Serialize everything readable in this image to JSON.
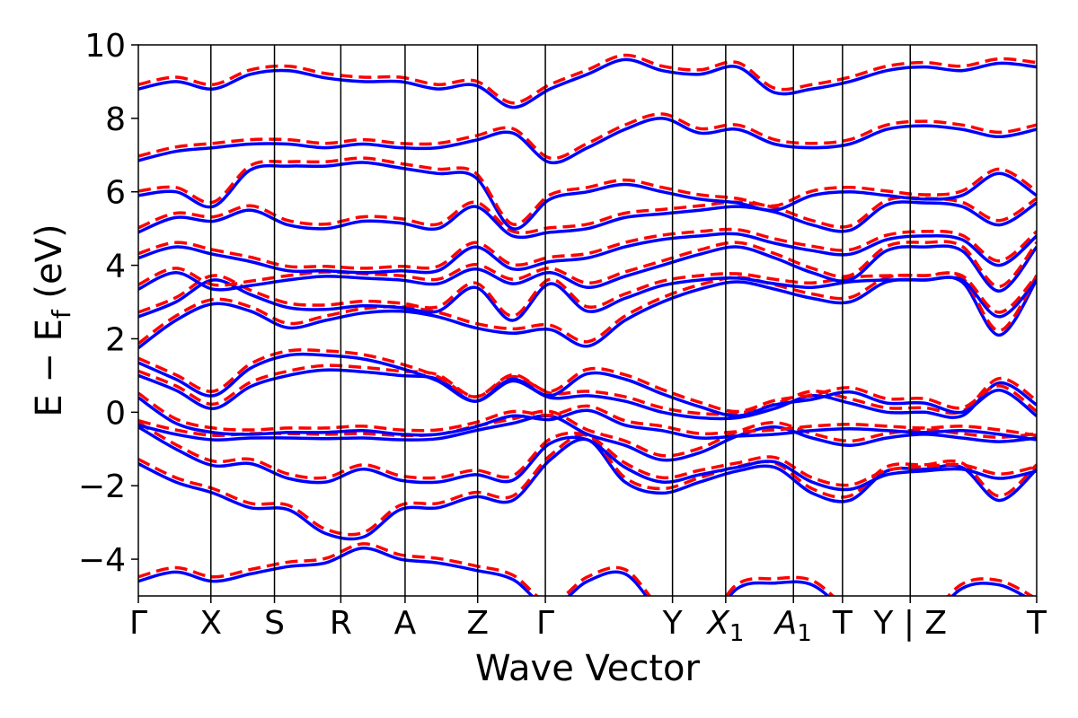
{
  "chart_data": {
    "type": "line",
    "xlabel": "Wave Vector",
    "ylabel_main": "E − E",
    "ylabel_sub": "f",
    "ylabel_unit": " (eV)",
    "ylim": [
      -5,
      10
    ],
    "xlim": [
      0,
      13.0
    ],
    "yticks": [
      -4,
      -2,
      0,
      2,
      4,
      6,
      8,
      10
    ],
    "ytick_labels": [
      "−4",
      "−2",
      "0",
      "2",
      "4",
      "6",
      "8",
      "10"
    ],
    "kpoint_positions": [
      0,
      1.05,
      1.97,
      2.93,
      3.86,
      4.91,
      5.89,
      7.73,
      8.5,
      9.48,
      10.19,
      11.17,
      13.0
    ],
    "kpoint_labels": [
      "Γ",
      "X",
      "S",
      "R",
      "A",
      "Z",
      "Γ",
      "Y",
      "X1",
      "A1",
      "T",
      "Y | Z",
      "T"
    ],
    "grid": false,
    "line_colors": {
      "solid": "#0000ff",
      "dashed": "#ff0000"
    },
    "series_styles": [
      "solid",
      "dashed"
    ],
    "bands": [
      [
        -4.6,
        -4.35,
        -4.6,
        -4.4,
        -4.2,
        -4.1,
        -3.7,
        -4.0,
        -4.1,
        -4.3,
        -4.55,
        -5.3,
        -4.6,
        -4.4,
        -5.5,
        -6.0,
        -4.8,
        -4.65,
        -4.7,
        -5.5,
        -6.0,
        -5.8,
        -4.8,
        -4.7,
        -5.2
      ],
      [
        -1.4,
        -1.9,
        -2.2,
        -2.6,
        -2.65,
        -3.3,
        -3.4,
        -2.65,
        -2.6,
        -2.3,
        -2.4,
        -1.3,
        -0.75,
        -1.9,
        -2.2,
        -1.9,
        -1.6,
        -1.5,
        -2.2,
        -2.4,
        -1.6,
        -1.55,
        -1.5,
        -2.4,
        -1.55
      ],
      [
        -0.4,
        -1.0,
        -1.45,
        -1.4,
        -1.8,
        -1.9,
        -1.55,
        -1.85,
        -1.9,
        -1.7,
        -1.85,
        -0.85,
        -0.75,
        -1.5,
        -1.9,
        -1.7,
        -1.5,
        -1.35,
        -1.9,
        -2.1,
        -1.7,
        -1.6,
        -1.55,
        -1.8,
        -1.6
      ],
      [
        -0.35,
        -0.6,
        -0.75,
        -0.7,
        -0.7,
        -0.72,
        -0.7,
        -0.75,
        -0.72,
        -0.5,
        -0.3,
        -0.1,
        -0.6,
        -0.9,
        -1.3,
        -1.1,
        -0.65,
        -0.4,
        -0.7,
        -0.9,
        -0.7,
        -0.6,
        -0.7,
        -0.8,
        -0.7
      ],
      [
        0.4,
        -0.3,
        -0.55,
        -0.6,
        -0.55,
        -0.55,
        -0.5,
        -0.6,
        -0.6,
        -0.4,
        -0.1,
        -0.2,
        0.05,
        -0.35,
        -0.5,
        -0.7,
        -0.65,
        -0.6,
        -0.5,
        -0.45,
        -0.5,
        -0.55,
        -0.5,
        -0.6,
        -0.75
      ],
      [
        1.0,
        0.6,
        0.1,
        0.7,
        1.0,
        1.15,
        1.1,
        1.0,
        0.9,
        0.3,
        0.85,
        0.4,
        0.45,
        0.3,
        0.0,
        -0.15,
        -0.15,
        0.1,
        0.45,
        0.25,
        0.0,
        0.0,
        -0.1,
        0.8,
        0.2
      ],
      [
        1.35,
        0.9,
        0.45,
        1.2,
        1.55,
        1.55,
        1.45,
        1.2,
        0.85,
        0.3,
        0.9,
        0.45,
        1.05,
        0.9,
        0.5,
        0.15,
        -0.1,
        0.2,
        0.35,
        0.55,
        0.25,
        0.25,
        0.0,
        0.6,
        -0.1
      ],
      [
        1.75,
        2.5,
        2.95,
        2.75,
        2.3,
        2.5,
        2.7,
        2.75,
        2.6,
        2.3,
        2.15,
        2.25,
        1.8,
        2.5,
        3.0,
        3.35,
        3.55,
        3.35,
        3.1,
        3.0,
        3.55,
        3.6,
        3.55,
        2.1,
        3.6
      ],
      [
        2.6,
        3.0,
        3.6,
        3.2,
        2.85,
        2.8,
        2.9,
        2.85,
        2.75,
        3.4,
        2.5,
        3.5,
        2.75,
        3.1,
        3.45,
        3.6,
        3.65,
        3.5,
        3.4,
        3.55,
        3.6,
        3.6,
        3.6,
        2.6,
        3.6
      ],
      [
        3.35,
        3.8,
        3.35,
        3.45,
        3.6,
        3.7,
        3.65,
        3.6,
        3.5,
        3.9,
        3.5,
        3.8,
        3.4,
        3.7,
        4.0,
        4.3,
        4.5,
        4.2,
        3.8,
        3.6,
        4.4,
        4.5,
        4.4,
        3.3,
        4.5
      ],
      [
        4.2,
        4.5,
        4.3,
        4.1,
        3.85,
        3.85,
        3.8,
        3.85,
        3.85,
        4.5,
        3.9,
        4.1,
        4.2,
        4.5,
        4.7,
        4.8,
        4.85,
        4.6,
        4.4,
        4.3,
        4.7,
        4.8,
        4.7,
        4.0,
        4.8
      ],
      [
        4.9,
        5.3,
        5.2,
        5.5,
        5.1,
        5.0,
        5.2,
        5.15,
        5.0,
        5.6,
        4.8,
        4.9,
        5.0,
        5.3,
        5.4,
        5.5,
        5.6,
        5.45,
        5.1,
        4.95,
        5.65,
        5.7,
        5.6,
        5.1,
        5.7
      ],
      [
        5.9,
        6.0,
        5.6,
        6.6,
        6.7,
        6.7,
        6.8,
        6.65,
        6.5,
        6.4,
        5.0,
        5.8,
        6.0,
        6.2,
        6.0,
        5.8,
        5.7,
        5.5,
        5.9,
        6.0,
        5.9,
        5.8,
        5.9,
        6.5,
        5.9
      ],
      [
        6.85,
        7.1,
        7.2,
        7.3,
        7.3,
        7.2,
        7.3,
        7.2,
        7.2,
        7.4,
        7.6,
        6.8,
        7.2,
        7.7,
        8.0,
        7.6,
        7.7,
        7.3,
        7.2,
        7.3,
        7.7,
        7.8,
        7.7,
        7.5,
        7.7
      ],
      [
        8.8,
        9.0,
        8.8,
        9.2,
        9.3,
        9.1,
        9.0,
        9.0,
        8.8,
        8.9,
        8.3,
        8.8,
        9.2,
        9.6,
        9.3,
        9.2,
        9.4,
        8.7,
        8.8,
        9.0,
        9.3,
        9.4,
        9.3,
        9.5,
        9.4
      ]
    ]
  }
}
